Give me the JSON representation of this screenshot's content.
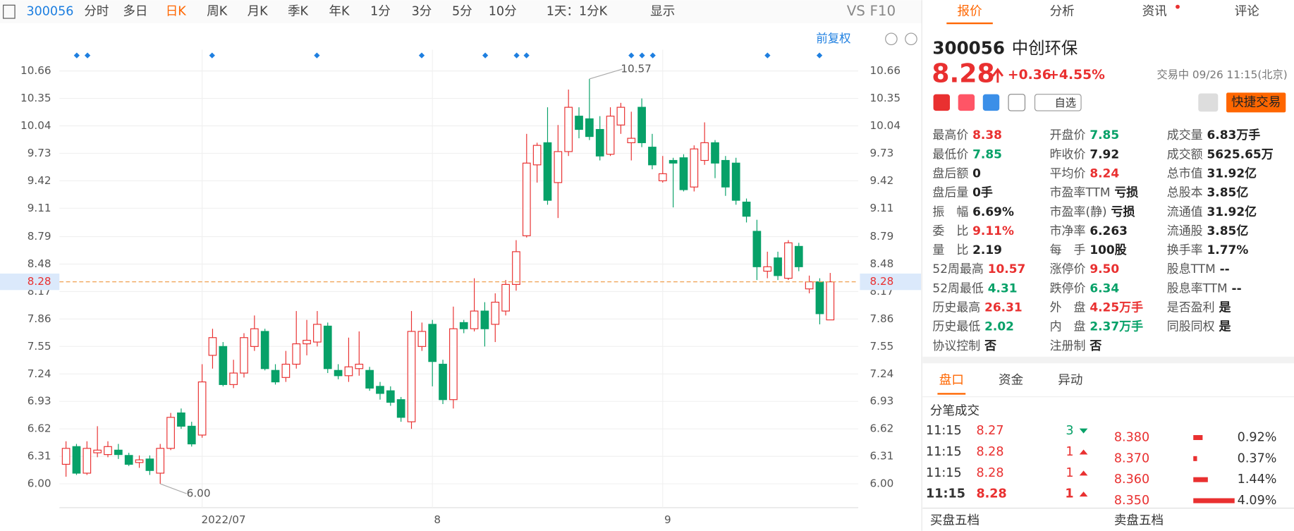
{
  "toolbar": {
    "code": "300056",
    "periods": [
      "分时",
      "多日",
      "日K",
      "周K",
      "月K",
      "季K",
      "年K",
      "1分",
      "3分",
      "5分",
      "10分"
    ],
    "interval": "1天：1分K",
    "display": "显示",
    "vs": "VS",
    "f10": "F10",
    "adjust": "前复权"
  },
  "chart_data": {
    "type": "candlestick",
    "categories": [
      null,
      null,
      null,
      null,
      null,
      null,
      null,
      null,
      null,
      null,
      null,
      null,
      null,
      "2022/07",
      null,
      null,
      null,
      null,
      null,
      null,
      null,
      null,
      null,
      null,
      null,
      null,
      null,
      null,
      null,
      null,
      null,
      null,
      null,
      null,
      null,
      "8",
      null,
      null,
      null,
      null,
      null,
      null,
      null,
      null,
      null,
      null,
      null,
      null,
      null,
      null,
      null,
      null,
      null,
      null,
      null,
      null,
      null,
      "9",
      null,
      null,
      null,
      null,
      null,
      null,
      null,
      null,
      null,
      null,
      null,
      null,
      null,
      null,
      null,
      null
    ],
    "open": [
      6.22,
      6.42,
      6.12,
      6.35,
      6.33,
      6.38,
      6.32,
      6.24,
      6.28,
      6.12,
      6.4,
      6.8,
      6.65,
      6.55,
      7.45,
      7.55,
      7.12,
      7.25,
      7.55,
      7.72,
      7.28,
      7.2,
      7.35,
      7.58,
      7.6,
      7.78,
      7.28,
      7.22,
      7.3,
      7.28,
      7.1,
      7.05,
      6.95,
      6.7,
      7.55,
      7.8,
      7.35,
      6.95,
      7.82,
      7.75,
      7.95,
      7.8,
      7.95,
      8.25,
      8.8,
      9.6,
      9.85,
      9.4,
      9.75,
      10.15,
      10.12,
      10,
      9.72,
      10.05,
      9.85,
      10.25,
      9.8,
      9.42,
      9.65,
      9.68,
      9.35,
      9.65,
      9.85,
      9.65,
      9.62,
      9.18,
      8.85,
      8.4,
      8.55,
      8.32,
      8.68,
      8.2,
      8.28,
      7.85
    ],
    "high": [
      6.48,
      6.45,
      6.48,
      6.65,
      6.48,
      6.45,
      6.35,
      6.32,
      6.32,
      6.45,
      6.8,
      6.85,
      6.7,
      7.35,
      7.75,
      7.6,
      7.4,
      7.7,
      7.9,
      7.75,
      7.35,
      7.5,
      7.95,
      7.85,
      7.95,
      7.82,
      7.35,
      7.65,
      7.72,
      7.32,
      7.15,
      7.1,
      6.98,
      7.95,
      7.82,
      7.85,
      7.4,
      8,
      7.85,
      8.32,
      8.05,
      8.15,
      8.3,
      8.75,
      9.95,
      9.85,
      10.25,
      10.05,
      10.45,
      10.25,
      10.57,
      10.15,
      10.25,
      10.3,
      10.2,
      10.35,
      9.95,
      9.7,
      9.68,
      9.72,
      9.82,
      10.08,
      9.88,
      9.7,
      9.68,
      9.22,
      8.98,
      8.62,
      8.62,
      8.75,
      8.72,
      8.35,
      8.32,
      8.38
    ],
    "low": [
      6.08,
      6.1,
      6.1,
      6.3,
      6.3,
      6.28,
      6.2,
      6.18,
      6.1,
      6,
      6.38,
      6.62,
      6.42,
      6.52,
      7.3,
      7.1,
      7.08,
      7.2,
      7.5,
      7.28,
      7.12,
      7.15,
      7.3,
      7.45,
      7.55,
      7.25,
      7.18,
      7.15,
      7.22,
      7.05,
      6.95,
      6.88,
      6.7,
      6.62,
      7.5,
      7.1,
      6.9,
      6.85,
      7.7,
      7.72,
      7.55,
      7.6,
      7.9,
      8.18,
      8.78,
      9.4,
      9.15,
      9,
      9.7,
      9.9,
      9.88,
      9.65,
      9.7,
      9.95,
      9.65,
      9.8,
      9.55,
      9.4,
      9.12,
      9.3,
      9.3,
      9.6,
      9.45,
      9.25,
      9.15,
      8.95,
      8.3,
      8.32,
      8.3,
      8.3,
      8.4,
      8.15,
      7.8,
      7.85
    ],
    "close": [
      6.4,
      6.12,
      6.4,
      6.38,
      6.42,
      6.33,
      6.22,
      6.27,
      6.15,
      6.4,
      6.75,
      6.65,
      6.45,
      7.15,
      7.65,
      7.12,
      7.25,
      7.65,
      7.75,
      7.3,
      7.15,
      7.35,
      7.58,
      7.62,
      7.8,
      7.3,
      7.22,
      7.32,
      7.35,
      7.08,
      7.02,
      6.92,
      6.75,
      7.72,
      7.72,
      7.38,
      6.95,
      7.75,
      7.75,
      7.95,
      7.75,
      8.05,
      8.25,
      8.62,
      9.62,
      9.82,
      9.2,
      9.75,
      10.25,
      10,
      9.92,
      9.7,
      10.15,
      10.25,
      9.9,
      9.85,
      9.6,
      9.5,
      9.62,
      9.32,
      9.78,
      9.85,
      9.62,
      9.35,
      9.2,
      9.02,
      8.45,
      8.45,
      8.35,
      8.72,
      8.45,
      8.28,
      7.92,
      8.28
    ],
    "up_color": "#e93030",
    "down_color": "#07a168",
    "ylim": [
      5.73,
      10.9
    ],
    "yticks": [
      {
        "value": 6,
        "label": "6.00"
      },
      6.31,
      6.62,
      6.93,
      7.24,
      7.55,
      7.86,
      8.17,
      8.48,
      8.79,
      9.11,
      9.42,
      9.73,
      10.04,
      10.35,
      10.66
    ],
    "grid": true,
    "last": 8.28,
    "annotations": [
      {
        "index": 50,
        "label": "10.57"
      },
      {
        "index": 9,
        "label": "6.00"
      }
    ]
  },
  "panel": {
    "tabs": [
      "报价",
      "分析",
      "资讯",
      "评论"
    ],
    "code": "300056",
    "name": "中创环保",
    "price": "8.28",
    "change": "+0.36",
    "pct": "+4.55%",
    "status": "交易中 09/26 11:15(北京)",
    "watch": "自选",
    "trade": "快捷交易",
    "quote": [
      [
        {
          "label": "最高价",
          "value": "8.38",
          "color": "#e93030"
        },
        {
          "label": "最低价",
          "value": "7.85",
          "color": "#07a168"
        },
        {
          "label": "盘后额",
          "value": "0"
        },
        {
          "label": "盘后量",
          "value": "0手"
        },
        {
          "label": "振　幅",
          "value": "6.69%"
        },
        {
          "label": "委　比",
          "value": "9.11%",
          "color": "#e93030"
        },
        {
          "label": "量　比",
          "value": "2.19"
        },
        {
          "label": "52周最高",
          "value": "10.57",
          "color": "#e93030"
        },
        {
          "label": "52周最低",
          "value": "4.31",
          "color": "#07a168"
        },
        {
          "label": "历史最高",
          "value": "26.31",
          "color": "#e93030"
        },
        {
          "label": "历史最低",
          "value": "2.02",
          "color": "#07a168"
        },
        {
          "label": "协议控制",
          "value": "否"
        }
      ],
      [
        {
          "label": "开盘价",
          "value": "7.85",
          "color": "#07a168"
        },
        {
          "label": "昨收价",
          "value": "7.92"
        },
        {
          "label": "平均价",
          "value": "8.24",
          "color": "#e93030"
        },
        {
          "label": "市盈率TTM",
          "value": "亏损"
        },
        {
          "label": "市盈率(静)",
          "value": "亏损"
        },
        {
          "label": "市净率",
          "value": "6.263"
        },
        {
          "label": "每　手",
          "value": "100股"
        },
        {
          "label": "涨停价",
          "value": "9.50",
          "color": "#e93030"
        },
        {
          "label": "跌停价",
          "value": "6.34",
          "color": "#07a168"
        },
        {
          "label": "外　盘",
          "value": "4.25万手",
          "color": "#e93030"
        },
        {
          "label": "内　盘",
          "value": "2.37万手",
          "color": "#07a168"
        },
        {
          "label": "注册制",
          "value": "否"
        }
      ],
      [
        {
          "label": "成交量",
          "value": "6.83万手"
        },
        {
          "label": "成交额",
          "value": "5625.65万"
        },
        {
          "label": "总市值",
          "value": "31.92亿"
        },
        {
          "label": "总股本",
          "value": "3.85亿"
        },
        {
          "label": "流通值",
          "value": "31.92亿"
        },
        {
          "label": "流通股",
          "value": "3.85亿"
        },
        {
          "label": "换手率",
          "value": "1.77%"
        },
        {
          "label": "股息TTM",
          "value": "--"
        },
        {
          "label": "股息率TTM",
          "value": "--"
        },
        {
          "label": "是否盈利",
          "value": "是"
        },
        {
          "label": "同股同权",
          "value": "是"
        }
      ]
    ],
    "subtabs": [
      "盘口",
      "资金",
      "异动"
    ],
    "ticks_title": "分笔成交",
    "trades": [
      [
        "11:15",
        "8.27",
        "3"
      ],
      [
        "11:15",
        "8.28",
        "1"
      ],
      [
        "11:15",
        "8.28",
        "1"
      ],
      [
        "11:15",
        "8.28",
        "1"
      ]
    ],
    "levels": [
      {
        "price": "8.380",
        "pct": {
          "value": 0.92,
          "label": "0.92%"
        }
      },
      {
        "price": "8.370",
        "pct": {
          "value": 0.37,
          "label": "0.37%"
        }
      },
      {
        "price": "8.360",
        "pct": {
          "value": 1.44,
          "label": "1.44%"
        }
      },
      {
        "price": "8.350",
        "pct": {
          "value": 4.09,
          "label": "4.09%"
        }
      }
    ],
    "buy": "买盘五档",
    "sell": "卖盘五档"
  }
}
